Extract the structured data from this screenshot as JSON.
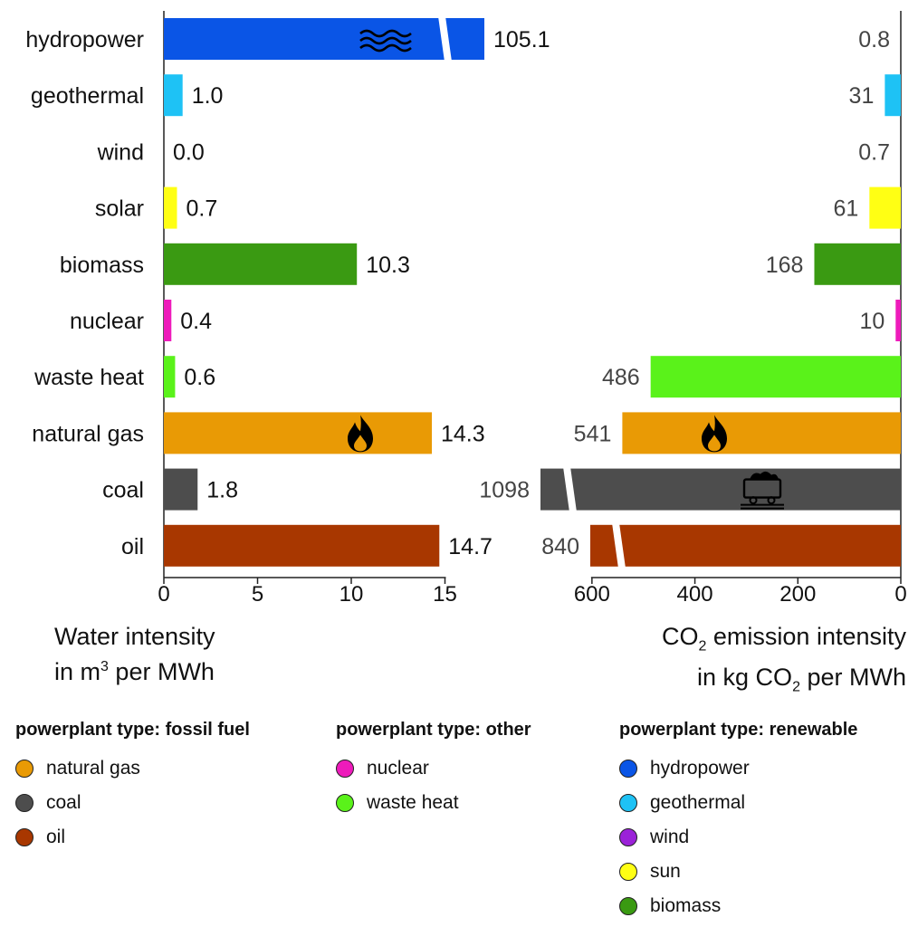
{
  "chart_data": {
    "type": "bar",
    "categories": [
      "hydropower",
      "geothermal",
      "wind",
      "solar",
      "biomass",
      "nuclear",
      "waste heat",
      "natural gas",
      "coal",
      "oil"
    ],
    "colors": [
      "#0a55e6",
      "#1ec2f5",
      "#9b22d8",
      "#ffff14",
      "#3a9a12",
      "#ee1bbb",
      "#5af21a",
      "#e99a05",
      "#4d4d4d",
      "#a83700"
    ],
    "series": [
      {
        "values": [
          105.1,
          1.0,
          0.0,
          0.7,
          10.3,
          0.4,
          0.6,
          14.3,
          1.8,
          14.7
        ],
        "labels": [
          "105.1",
          "1.0",
          "0.0",
          "0.7",
          "10.3",
          "0.4",
          "0.6",
          "14.3",
          "1.8",
          "14.7"
        ],
        "xlim": [
          0,
          15
        ],
        "ticks": [
          "0",
          "5",
          "10",
          "15"
        ],
        "axis_break": [
          "hydropower"
        ]
      },
      {
        "values": [
          0.8,
          31,
          0.7,
          61,
          168,
          10,
          486,
          541,
          1098,
          840
        ],
        "labels": [
          "0.8",
          "31",
          "0.7",
          "61",
          "168",
          "10",
          "486",
          "541",
          "1098",
          "840"
        ],
        "xlim": [
          0,
          700
        ],
        "reversed": true,
        "ticks": [
          "600",
          "400",
          "200",
          "0"
        ],
        "axis_break": [
          "coal",
          "oil"
        ]
      }
    ],
    "icons": {
      "hydropower": "water-waves-icon",
      "natural gas": "flame-icon",
      "coal": "mine-cart-icon"
    }
  },
  "axis_titles": {
    "water_line1": "Water intensity",
    "water_line2_a": "in m",
    "water_line2_sup": "3",
    "water_line2_b": " per MWh",
    "co2_line1_a": "CO",
    "co2_line1_sub": "2",
    "co2_line1_b": " emission intensity",
    "co2_line2_a": "in kg CO",
    "co2_line2_sub": "2",
    "co2_line2_b": " per MWh"
  },
  "legend": [
    {
      "title": "powerplant type: fossil fuel",
      "items": [
        {
          "label": "natural gas",
          "color": "#e99a05"
        },
        {
          "label": "coal",
          "color": "#4d4d4d"
        },
        {
          "label": "oil",
          "color": "#a83700"
        }
      ]
    },
    {
      "title": "powerplant type: other",
      "items": [
        {
          "label": "nuclear",
          "color": "#ee1bbb"
        },
        {
          "label": "waste heat",
          "color": "#5af21a"
        }
      ]
    },
    {
      "title": "powerplant type: renewable",
      "items": [
        {
          "label": "hydropower",
          "color": "#0a55e6"
        },
        {
          "label": "geothermal",
          "color": "#1ec2f5"
        },
        {
          "label": "wind",
          "color": "#9b22d8"
        },
        {
          "label": "sun",
          "color": "#ffff14"
        },
        {
          "label": "biomass",
          "color": "#3a9a12"
        }
      ]
    }
  ]
}
